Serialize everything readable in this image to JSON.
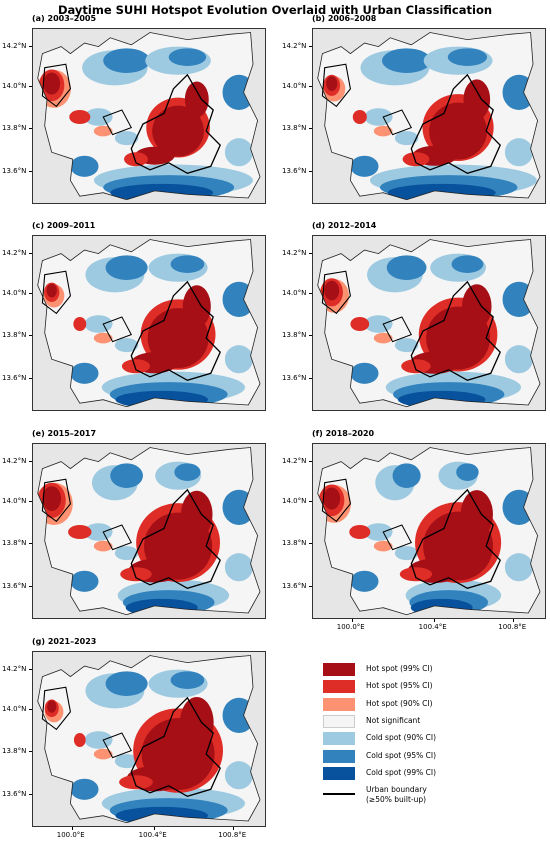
{
  "title": "Daytime SUHI Hotspot Evolution Overlaid with Urban Classification",
  "panels": [
    {
      "label": "(a) 2003–2005",
      "show_x_ticks": false
    },
    {
      "label": "(b) 2006–2008",
      "show_x_ticks": false
    },
    {
      "label": "(c) 2009–2011",
      "show_x_ticks": false
    },
    {
      "label": "(d) 2012–2014",
      "show_x_ticks": false
    },
    {
      "label": "(e) 2015–2017",
      "show_x_ticks": false
    },
    {
      "label": "(f) 2018–2020",
      "show_x_ticks": true
    },
    {
      "label": "(g) 2021–2023",
      "show_x_ticks": true
    }
  ],
  "y_ticks": [
    "14.2°N",
    "14.0°N",
    "13.8°N",
    "13.6°N"
  ],
  "x_ticks": [
    "100.0°E",
    "100.4°E",
    "100.8°E"
  ],
  "legend": [
    {
      "label": "Hot spot (99% CI)",
      "color": "#a50f15"
    },
    {
      "label": "Hot spot (95% CI)",
      "color": "#de2d26"
    },
    {
      "label": "Hot spot (90% CI)",
      "color": "#fc9272"
    },
    {
      "label": "Not significant",
      "color": "#f5f5f5"
    },
    {
      "label": "Cold spot (90% CI)",
      "color": "#9ecae1"
    },
    {
      "label": "Cold spot (95% CI)",
      "color": "#3182bd"
    },
    {
      "label": "Cold spot (99% CI)",
      "color": "#08519c"
    }
  ],
  "legend_boundary": {
    "line1": "Urban boundary",
    "line2": "(≥50% built-up)"
  },
  "colors": {
    "hot99": "#a50f15",
    "hot95": "#de2d26",
    "hot90": "#fc9272",
    "ns": "#f5f5f5",
    "cold90": "#9ecae1",
    "cold95": "#3182bd",
    "cold99": "#08519c",
    "background": "#e6e6e6"
  }
}
